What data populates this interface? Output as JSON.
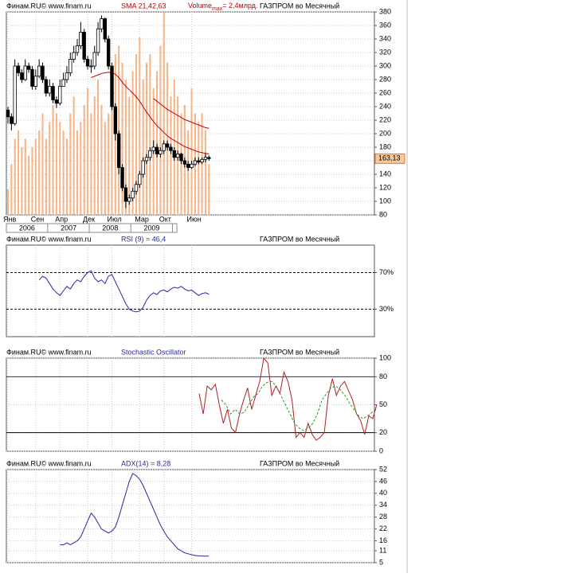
{
  "chart_data": [
    {
      "type": "candlestick",
      "source": "Финам.RU©  www.finam.ru",
      "indicator": "SMA 21,42,63",
      "volume_title": "Volume",
      "volume_sub": "max",
      "volume_max": {
        "value": 2.4,
        "label": "= 2,4млрд."
      },
      "instrument": "ГАЗПРОМ во Месячный",
      "x": [
        "2006-01",
        "2006-02",
        "2006-03",
        "2006-04",
        "2006-05",
        "2006-06",
        "2006-07",
        "2006-08",
        "2006-09",
        "2006-10",
        "2006-11",
        "2006-12",
        "2007-01",
        "2007-02",
        "2007-03",
        "2007-04",
        "2007-05",
        "2007-06",
        "2007-07",
        "2007-08",
        "2007-09",
        "2007-10",
        "2007-11",
        "2007-12",
        "2008-01",
        "2008-02",
        "2008-03",
        "2008-04",
        "2008-05",
        "2008-06",
        "2008-07",
        "2008-08",
        "2008-09",
        "2008-10",
        "2008-11",
        "2008-12",
        "2009-01",
        "2009-02",
        "2009-03",
        "2009-04",
        "2009-05",
        "2009-06",
        "2009-07",
        "2009-08",
        "2009-09",
        "2009-10",
        "2009-11",
        "2009-12",
        "2010-01",
        "2010-02",
        "2010-03",
        "2010-04",
        "2010-05",
        "2010-06",
        "2010-07",
        "2010-08",
        "2010-09",
        "2010-10",
        "2010-11"
      ],
      "xticks": [
        {
          "value": "2006-01",
          "label": "Янв"
        },
        {
          "value": "2006-09",
          "label": "Сен"
        },
        {
          "value": "2007-04",
          "label": "Апр"
        },
        {
          "value": "2007-12",
          "label": "Дек"
        },
        {
          "value": "2008-07",
          "label": "Июл"
        },
        {
          "value": "2009-03",
          "label": "Мар"
        },
        {
          "value": "2009-10",
          "label": "Окт"
        },
        {
          "value": "2010-06",
          "label": "Июн"
        }
      ],
      "year_ticks": [
        "2006",
        "2007",
        "2008",
        "2009"
      ],
      "open": [
        235,
        225,
        215,
        300,
        290,
        280,
        300,
        295,
        270,
        285,
        300,
        280,
        260,
        270,
        250,
        245,
        270,
        280,
        290,
        310,
        320,
        330,
        350,
        310,
        300,
        300,
        320,
        355,
        370,
        340,
        300,
        240,
        200,
        150,
        120,
        100,
        105,
        115,
        125,
        140,
        160,
        165,
        175,
        180,
        170,
        175,
        185,
        180,
        175,
        165,
        170,
        160,
        155,
        150,
        155,
        160,
        158,
        162,
        165
      ],
      "high": [
        240,
        230,
        310,
        305,
        295,
        310,
        305,
        300,
        295,
        310,
        305,
        285,
        280,
        275,
        255,
        280,
        290,
        300,
        320,
        330,
        340,
        365,
        355,
        315,
        310,
        330,
        365,
        375,
        372,
        345,
        305,
        245,
        205,
        155,
        125,
        110,
        120,
        130,
        145,
        165,
        170,
        180,
        190,
        185,
        180,
        190,
        190,
        185,
        180,
        175,
        172,
        165,
        160,
        160,
        165,
        165,
        165,
        170,
        168
      ],
      "low": [
        215,
        205,
        212,
        285,
        275,
        278,
        290,
        265,
        265,
        282,
        275,
        255,
        255,
        245,
        238,
        242,
        270,
        275,
        285,
        305,
        315,
        325,
        305,
        295,
        290,
        295,
        315,
        350,
        335,
        295,
        235,
        190,
        140,
        115,
        90,
        95,
        100,
        110,
        120,
        135,
        155,
        160,
        170,
        165,
        165,
        170,
        175,
        170,
        160,
        160,
        155,
        150,
        145,
        148,
        152,
        155,
        155,
        158,
        160
      ],
      "close": [
        225,
        215,
        300,
        290,
        280,
        300,
        295,
        270,
        285,
        300,
        280,
        260,
        270,
        250,
        245,
        270,
        280,
        290,
        310,
        320,
        330,
        350,
        310,
        300,
        300,
        320,
        355,
        370,
        340,
        300,
        240,
        200,
        150,
        120,
        100,
        105,
        115,
        125,
        140,
        160,
        165,
        175,
        180,
        170,
        175,
        185,
        180,
        175,
        165,
        170,
        160,
        155,
        150,
        155,
        160,
        158,
        162,
        165,
        163.13
      ],
      "volume": [
        0.3,
        0.6,
        0.9,
        1.0,
        0.8,
        0.9,
        0.7,
        0.8,
        0.9,
        1.0,
        1.2,
        0.9,
        1.1,
        1.3,
        1.2,
        1.1,
        1.0,
        0.9,
        1.2,
        1.4,
        1.0,
        1.1,
        1.3,
        1.5,
        1.2,
        1.4,
        1.6,
        1.3,
        1.1,
        1.2,
        1.4,
        1.9,
        2.0,
        1.8,
        1.6,
        1.4,
        1.7,
        1.9,
        2.1,
        1.6,
        1.8,
        1.9,
        1.5,
        1.7,
        2.0,
        2.4,
        1.8,
        1.4,
        1.6,
        1.4,
        1.2,
        1.3,
        1.0,
        1.5,
        1.2,
        1.1,
        1.2,
        1.0,
        0.6
      ],
      "volume_color": "#f4b486",
      "lines": [
        {
          "color": "#c00000",
          "values": [
            null,
            null,
            null,
            null,
            null,
            null,
            null,
            null,
            null,
            null,
            null,
            null,
            null,
            null,
            null,
            null,
            null,
            null,
            null,
            null,
            null,
            null,
            null,
            null,
            283,
            285,
            287,
            289,
            290,
            291,
            290,
            288,
            283,
            276,
            270,
            265,
            260,
            255,
            248,
            240,
            232,
            225,
            218,
            212,
            207,
            202,
            197,
            193,
            190,
            187,
            184,
            181,
            179,
            177,
            175,
            173,
            172,
            171,
            170
          ]
        },
        {
          "color": "#c00000",
          "values": [
            null,
            null,
            null,
            null,
            null,
            null,
            null,
            null,
            null,
            null,
            null,
            null,
            null,
            null,
            null,
            null,
            null,
            null,
            null,
            null,
            null,
            null,
            null,
            null,
            null,
            null,
            null,
            null,
            null,
            null,
            null,
            null,
            null,
            null,
            null,
            null,
            null,
            null,
            null,
            null,
            null,
            null,
            252,
            248,
            244,
            240,
            236,
            233,
            230,
            227,
            224,
            221,
            219,
            217,
            215,
            213,
            211,
            209,
            208
          ]
        }
      ],
      "last_price": {
        "value": 163.13,
        "label": "163,13"
      },
      "ylim": [
        80,
        380
      ],
      "yticks": [
        80,
        100,
        120,
        140,
        160,
        180,
        200,
        220,
        240,
        260,
        280,
        300,
        320,
        340,
        360,
        380
      ],
      "grid": true
    },
    {
      "type": "line",
      "source": "Финам.RU©  www.finam.ru",
      "indicator": "RSI (9) = 46,4",
      "instrument": "ГАЗПРОМ во Месячный",
      "values": [
        null,
        null,
        null,
        null,
        null,
        null,
        null,
        null,
        null,
        62,
        66,
        64,
        58,
        52,
        48,
        45,
        50,
        55,
        52,
        58,
        62,
        60,
        66,
        70,
        72,
        64,
        60,
        62,
        58,
        66,
        68,
        60,
        52,
        44,
        36,
        30,
        28,
        27,
        28,
        32,
        40,
        45,
        48,
        46,
        50,
        51,
        49,
        52,
        54,
        53,
        55,
        52,
        50,
        51,
        48,
        45,
        47,
        48,
        46.4
      ],
      "color": "#2828a0",
      "ylim": [
        0,
        100
      ],
      "yticks": [
        {
          "value": 70,
          "label": "70%"
        },
        {
          "value": 30,
          "label": "30%"
        }
      ],
      "grid": "dashed"
    },
    {
      "type": "line",
      "source": "Финам.RU©  www.finam.ru",
      "indicator": "Stochastic Oscillator",
      "instrument": "ГАЗПРОМ во Месячный",
      "series": [
        {
          "color": "#b02020",
          "values": [
            62,
            40,
            70,
            66,
            72,
            50,
            30,
            45,
            25,
            20,
            40,
            55,
            68,
            45,
            60,
            75,
            100,
            95,
            60,
            70,
            62,
            85,
            75,
            55,
            15,
            20,
            15,
            30,
            18,
            12,
            15,
            20,
            60,
            78,
            60,
            70,
            75,
            65,
            55,
            40,
            33,
            18,
            38,
            35,
            50
          ]
        },
        {
          "color": "#2a9a2a",
          "dashed": true,
          "values": [
            55,
            50,
            40,
            45,
            40,
            42,
            50,
            58,
            62,
            70,
            74,
            75,
            70,
            60,
            50,
            40,
            30,
            25,
            22,
            25,
            30,
            40,
            55,
            62,
            68,
            70,
            66,
            60,
            52,
            45,
            38,
            35,
            38,
            42,
            45
          ]
        }
      ],
      "levels": [
        {
          "value": 80,
          "color": "#2828a0"
        },
        {
          "value": 20,
          "color": "#000000"
        }
      ],
      "ylim": [
        0,
        100
      ],
      "yticks": [
        0,
        20,
        50,
        80,
        100
      ],
      "grid": true
    },
    {
      "type": "line",
      "source": "Финам.RU©  www.finam.ru",
      "indicator": "ADX(14) = 8,28",
      "instrument": "ГАЗПРОМ во Месячный",
      "values": [
        null,
        null,
        null,
        null,
        null,
        null,
        null,
        null,
        null,
        null,
        null,
        null,
        null,
        null,
        null,
        14,
        14,
        15,
        14,
        15,
        16,
        18,
        22,
        26,
        30,
        28,
        25,
        22,
        21,
        20,
        21,
        23,
        28,
        34,
        40,
        46,
        50,
        49,
        47,
        44,
        40,
        36,
        32,
        28,
        24,
        21,
        18,
        16,
        14,
        12,
        11,
        10,
        9.5,
        9,
        8.6,
        8.4,
        8.3,
        8.3,
        8.28
      ],
      "color": "#2828a0",
      "ylim": [
        5,
        52
      ],
      "yticks": [
        5,
        11,
        16,
        22,
        28,
        34,
        40,
        46,
        52
      ],
      "grid": true
    }
  ]
}
